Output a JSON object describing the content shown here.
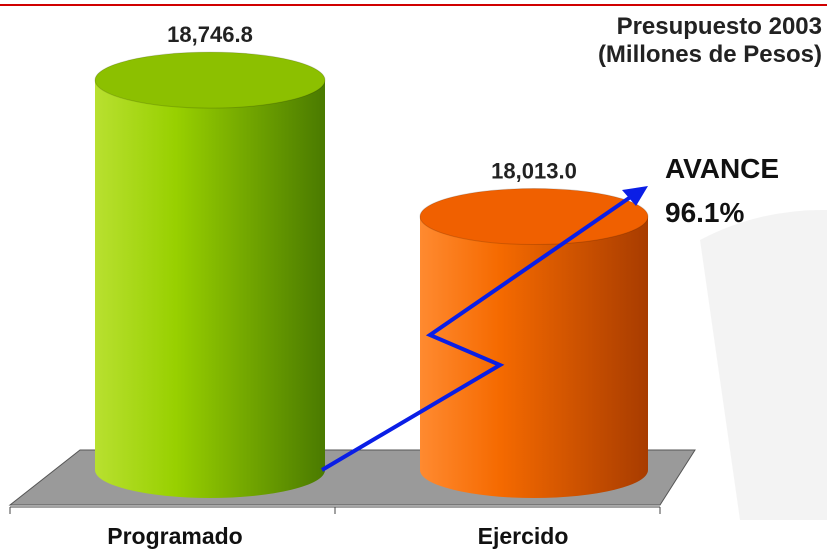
{
  "chart_data": {
    "type": "bar",
    "title": "Presupuesto 2003",
    "subtitle": "(Millones de Pesos)",
    "categories": [
      "Programado",
      "Ejercido"
    ],
    "values": [
      18746.8,
      18013.0
    ],
    "value_labels": [
      "18,746.8",
      "18,013.0"
    ],
    "colors": [
      "#8cc000",
      "#f06000"
    ],
    "ylim": [
      16650,
      19000
    ],
    "annotations": [
      "AVANCE",
      "96.1%"
    ],
    "arrow_color": "#0a1ee6"
  }
}
